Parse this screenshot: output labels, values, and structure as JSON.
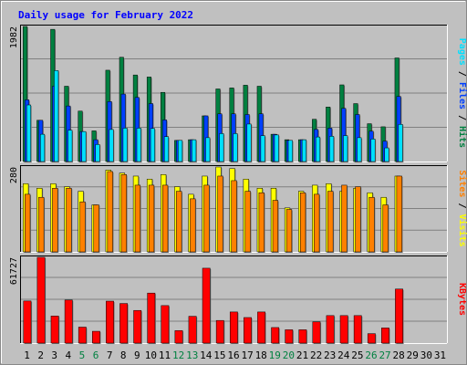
{
  "chart_data": {
    "type": "bar",
    "title": "Daily usage for February 2022",
    "x": [
      "1",
      "2",
      "3",
      "4",
      "5",
      "6",
      "7",
      "8",
      "9",
      "10",
      "11",
      "12",
      "13",
      "14",
      "15",
      "16",
      "17",
      "18",
      "19",
      "20",
      "21",
      "22",
      "23",
      "24",
      "25",
      "26",
      "27",
      "28",
      "29",
      "30",
      "31"
    ],
    "weekend_days": [
      "5",
      "6",
      "12",
      "13",
      "19",
      "20",
      "26",
      "27"
    ],
    "panels": [
      {
        "name": "hits-files-pages",
        "ymax_label": "1982",
        "ymax": 1982,
        "axis_label_parts": [
          {
            "text": "Pages",
            "color": "#00e0ff"
          },
          {
            "text": " / ",
            "color": "#000000"
          },
          {
            "text": "Files",
            "color": "#0040ff"
          },
          {
            "text": " / ",
            "color": "#000000"
          },
          {
            "text": "Hits",
            "color": "#008040"
          }
        ],
        "series": [
          {
            "name": "Hits",
            "color": "#008040",
            "values": [
              1982,
              605,
              1940,
              1105,
              740,
              450,
              1340,
              1530,
              1270,
              1240,
              1015,
              310,
              320,
              670,
              1065,
              1080,
              1120,
              1105,
              400,
              320,
              320,
              620,
              800,
              1125,
              850,
              555,
              510,
              1520,
              0,
              0,
              0
            ]
          },
          {
            "name": "Files",
            "color": "#0040ff",
            "values": [
              905,
              605,
              1105,
              815,
              440,
              320,
              880,
              990,
              940,
              850,
              610,
              310,
              320,
              670,
              700,
              700,
              690,
              700,
              400,
              310,
              320,
              470,
              490,
              780,
              690,
              445,
              300,
              955,
              0,
              0,
              0
            ]
          },
          {
            "name": "Pages",
            "color": "#00e0ff",
            "values": [
              830,
              400,
              1335,
              460,
              440,
              250,
              470,
              490,
              490,
              485,
              365,
              310,
              320,
              350,
              410,
              410,
              550,
              380,
              390,
              310,
              320,
              360,
              370,
              380,
              350,
              330,
              200,
              545,
              0,
              0,
              0
            ]
          }
        ]
      },
      {
        "name": "visits-sites",
        "ymax_label": "280",
        "ymax": 280,
        "axis_label_parts": [
          {
            "text": "Sites",
            "color": "#ff8000"
          },
          {
            "text": " / ",
            "color": "#000000"
          },
          {
            "text": "Visits",
            "color": "#ffff00"
          }
        ],
        "series": [
          {
            "name": "Visits",
            "color": "#ffff00",
            "values": [
              225,
              210,
              225,
              215,
              200,
              155,
              270,
              260,
              250,
              240,
              255,
              215,
              190,
              250,
              280,
              275,
              240,
              210,
              210,
              145,
              200,
              220,
              225,
              200,
              210,
              195,
              180,
              250,
              0,
              0,
              0
            ]
          },
          {
            "name": "Sites",
            "color": "#ff8000",
            "values": [
              190,
              180,
              210,
              210,
              165,
              155,
              265,
              255,
              220,
              220,
              220,
              200,
              175,
              220,
              250,
              235,
              200,
              195,
              170,
              140,
              195,
              190,
              200,
              220,
              215,
              180,
              155,
              250,
              0,
              0,
              0
            ]
          }
        ]
      },
      {
        "name": "kbytes",
        "ymax_label": "61727",
        "ymax": 61727,
        "axis_label_parts": [
          {
            "text": "KBytes",
            "color": "#ff0000"
          }
        ],
        "series": [
          {
            "name": "KBytes",
            "color": "#ff0000",
            "values": [
              30300,
              61727,
              19500,
              31000,
              11500,
              8500,
              30200,
              28500,
              23500,
              36000,
              27000,
              9000,
              19300,
              53900,
              16300,
              22400,
              18400,
              22400,
              11200,
              9600,
              9600,
              15300,
              19800,
              19800,
              19800,
              6800,
              10900,
              38900,
              0,
              0,
              0
            ]
          }
        ]
      }
    ]
  }
}
